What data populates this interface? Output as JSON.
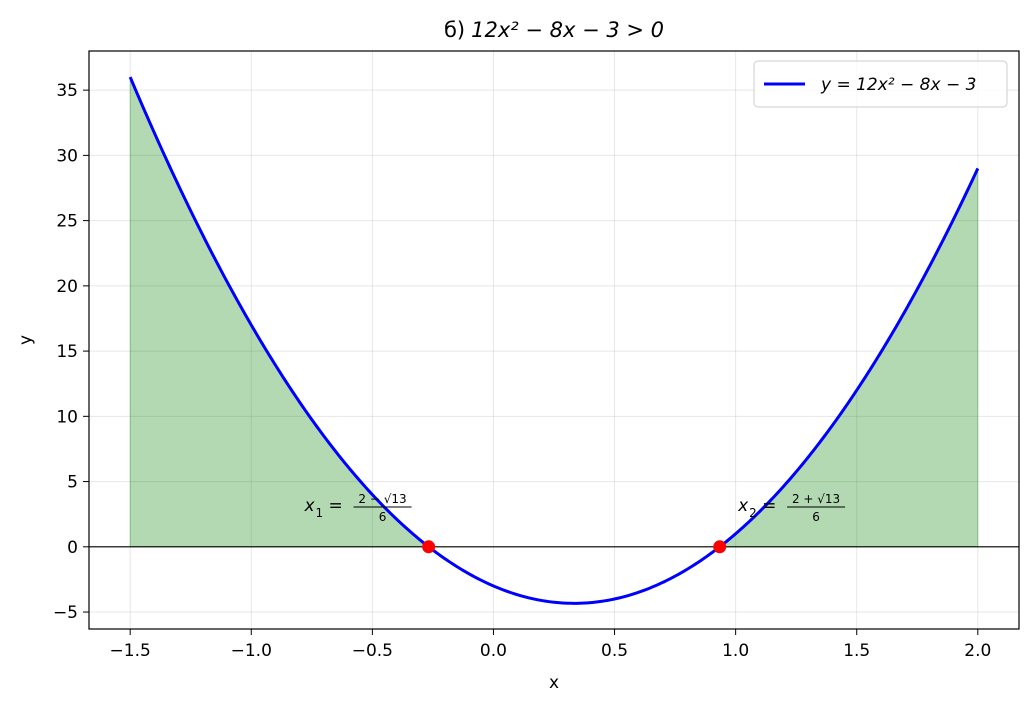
{
  "chart_data": {
    "type": "line",
    "title": "б) 12x² − 8x − 3 > 0",
    "title_prefix": "б)",
    "title_math": "12x² − 8x − 3 > 0",
    "xlabel": "x",
    "ylabel": "y",
    "xlim": [
      -1.67,
      2.17
    ],
    "ylim": [
      -6.3,
      38.0
    ],
    "x_ticks": [
      -1.5,
      -1.0,
      -0.5,
      0.0,
      0.5,
      1.0,
      1.5,
      2.0
    ],
    "x_tick_labels": [
      "−1.5",
      "−1.0",
      "−0.5",
      "0.0",
      "0.5",
      "1.0",
      "1.5",
      "2.0"
    ],
    "y_ticks": [
      -5,
      0,
      5,
      10,
      15,
      20,
      25,
      30,
      35
    ],
    "y_tick_labels": [
      "−5",
      "0",
      "5",
      "10",
      "15",
      "20",
      "25",
      "30",
      "35"
    ],
    "grid": true,
    "legend_position": "top-right",
    "series": [
      {
        "name": "y = 12x² − 8x − 3",
        "color": "#0000ff",
        "x_range": [
          -1.5,
          2.0
        ],
        "coefficients": {
          "a": 12,
          "b": -8,
          "c": -3
        }
      }
    ],
    "fill_regions": [
      {
        "x_range": [
          -1.5,
          -0.2676
        ],
        "color": "#008000",
        "alpha": 0.3,
        "condition": "y > 0"
      },
      {
        "x_range": [
          0.9343,
          2.0
        ],
        "color": "#008000",
        "alpha": 0.3,
        "condition": "y > 0"
      }
    ],
    "roots": [
      {
        "x": -0.2676,
        "y": 0,
        "color": "#ff0000",
        "label_var": "x",
        "label_sub": "1",
        "label_eq": "=",
        "label_num": "2 − √13",
        "label_den": "6",
        "label_x": -0.78,
        "label_y": 3.2
      },
      {
        "x": 0.9343,
        "y": 0,
        "color": "#ff0000",
        "label_var": "x",
        "label_sub": "2",
        "label_eq": "=",
        "label_num": "2 + √13",
        "label_den": "6",
        "label_x": 1.01,
        "label_y": 3.2
      }
    ],
    "hline": {
      "y": 0,
      "color": "#000000"
    }
  }
}
